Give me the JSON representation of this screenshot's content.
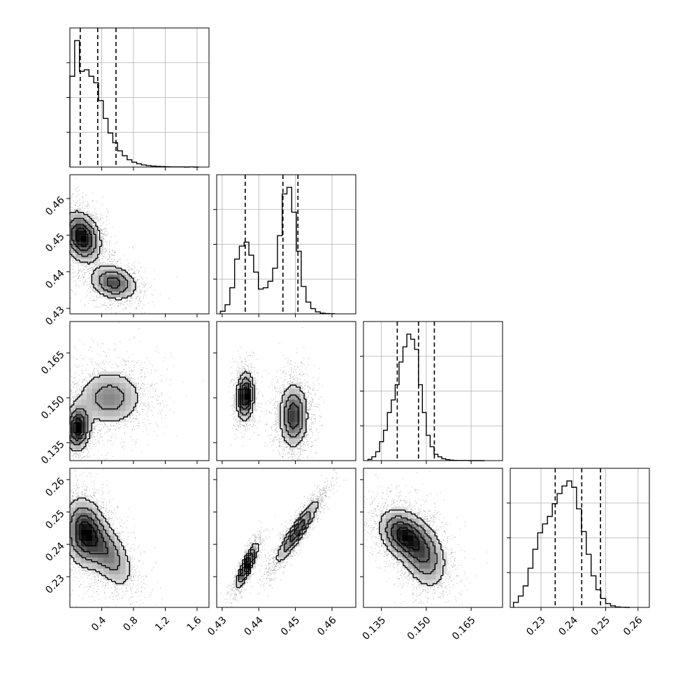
{
  "chart_data": {
    "type": "corner",
    "n_params": 4,
    "grid": true,
    "parameters": [
      {
        "index": 0,
        "range": [
          0.0,
          1.75
        ],
        "ticks": [
          0.4,
          0.8,
          1.2,
          1.6
        ],
        "tick_labels": [
          "0.4",
          "0.8",
          "1.2",
          "1.6"
        ],
        "quantiles": [
          0.13,
          0.35,
          0.58
        ]
      },
      {
        "index": 1,
        "range": [
          0.4285,
          0.4665
        ],
        "ticks": [
          0.43,
          0.44,
          0.45,
          0.46
        ],
        "tick_labels": [
          "0.43",
          "0.44",
          "0.45",
          "0.46"
        ],
        "quantiles": [
          0.4363,
          0.4466,
          0.4507
        ]
      },
      {
        "index": 2,
        "range": [
          0.129,
          0.1755
        ],
        "ticks": [
          0.135,
          0.15,
          0.165
        ],
        "tick_labels": [
          "0.135",
          "0.150",
          "0.165"
        ],
        "quantiles": [
          0.1403,
          0.1474,
          0.1527
        ]
      },
      {
        "index": 3,
        "range": [
          0.2205,
          0.2635
        ],
        "ticks": [
          0.23,
          0.24,
          0.25,
          0.26
        ],
        "tick_labels": [
          "0.23",
          "0.24",
          "0.25",
          "0.26"
        ],
        "quantiles": [
          0.2344,
          0.2426,
          0.2484
        ]
      }
    ],
    "histograms": [
      {
        "param": 0,
        "bins": [
          0.0,
          0.06,
          0.12,
          0.18,
          0.24,
          0.3,
          0.36,
          0.42,
          0.48,
          0.54,
          0.6,
          0.66,
          0.72,
          0.78,
          0.84,
          0.9,
          0.96,
          1.02,
          1.08,
          1.14,
          1.2,
          1.26,
          1.32,
          1.38,
          1.44,
          1.5,
          1.56,
          1.62
        ],
        "counts": [
          560,
          780,
          590,
          600,
          560,
          520,
          410,
          300,
          210,
          150,
          100,
          70,
          45,
          30,
          20,
          13,
          9,
          6,
          4,
          3,
          2,
          1,
          1,
          1,
          0,
          1,
          0
        ]
      },
      {
        "param": 1,
        "bins": [
          0.4295,
          0.4308,
          0.4321,
          0.4334,
          0.4347,
          0.436,
          0.4373,
          0.4386,
          0.4399,
          0.4412,
          0.4425,
          0.4438,
          0.4451,
          0.4464,
          0.4477,
          0.449,
          0.4503,
          0.4516,
          0.4529,
          0.4542,
          0.4555,
          0.4568,
          0.4581,
          0.4594,
          0.4607
        ],
        "counts": [
          20,
          70,
          200,
          420,
          520,
          550,
          450,
          320,
          190,
          200,
          250,
          350,
          600,
          920,
          970,
          780,
          480,
          210,
          90,
          40,
          15,
          5,
          2,
          1
        ]
      },
      {
        "param": 2,
        "bins": [
          0.1305,
          0.1318,
          0.1331,
          0.1344,
          0.1357,
          0.137,
          0.1383,
          0.1396,
          0.1409,
          0.1422,
          0.1435,
          0.1448,
          0.1461,
          0.1474,
          0.1487,
          0.15,
          0.1513,
          0.1526,
          0.1539,
          0.1552,
          0.1565,
          0.1578,
          0.1591,
          0.1604,
          0.1617,
          0.163,
          0.1643,
          0.1656,
          0.1669,
          0.1682,
          0.1695
        ],
        "counts": [
          10,
          30,
          70,
          150,
          240,
          380,
          480,
          600,
          780,
          900,
          1000,
          960,
          880,
          600,
          380,
          200,
          110,
          50,
          30,
          15,
          8,
          4,
          2,
          1,
          1,
          1,
          0,
          0,
          0,
          0
        ]
      },
      {
        "param": 3,
        "bins": [
          0.2215,
          0.223,
          0.2245,
          0.226,
          0.2275,
          0.229,
          0.2305,
          0.232,
          0.2335,
          0.235,
          0.2365,
          0.238,
          0.2395,
          0.241,
          0.2425,
          0.244,
          0.2455,
          0.247,
          0.2485,
          0.25,
          0.2515,
          0.253,
          0.2545,
          0.256,
          0.2575
        ],
        "counts": [
          40,
          90,
          170,
          310,
          460,
          590,
          660,
          720,
          820,
          900,
          960,
          1000,
          950,
          780,
          600,
          420,
          250,
          140,
          70,
          30,
          12,
          4,
          1,
          0
        ]
      }
    ],
    "joint": [
      {
        "x": 0,
        "y": 1,
        "clusters": [
          {
            "mx": 0.15,
            "my": 0.4495,
            "sx": 0.12,
            "sy": 0.0035,
            "rho": -0.25,
            "w": 0.62
          },
          {
            "mx": 0.55,
            "my": 0.437,
            "sx": 0.15,
            "sy": 0.0025,
            "rho": -0.2,
            "w": 0.38
          }
        ]
      },
      {
        "x": 0,
        "y": 2,
        "clusters": [
          {
            "mx": 0.1,
            "my": 0.14,
            "sx": 0.08,
            "sy": 0.004,
            "rho": 0.1,
            "w": 0.38
          },
          {
            "mx": 0.5,
            "my": 0.15,
            "sx": 0.22,
            "sy": 0.005,
            "rho": 0.0,
            "w": 0.62
          }
        ]
      },
      {
        "x": 0,
        "y": 3,
        "clusters": [
          {
            "mx": 0.18,
            "my": 0.2435,
            "sx": 0.13,
            "sy": 0.0055,
            "rho": -0.1,
            "w": 0.55
          },
          {
            "mx": 0.45,
            "my": 0.238,
            "sx": 0.18,
            "sy": 0.006,
            "rho": -0.6,
            "w": 0.45
          }
        ]
      },
      {
        "x": 1,
        "y": 2,
        "clusters": [
          {
            "mx": 0.4363,
            "my": 0.1505,
            "sx": 0.0012,
            "sy": 0.004,
            "rho": 0.1,
            "w": 0.38
          },
          {
            "mx": 0.4495,
            "my": 0.144,
            "sx": 0.002,
            "sy": 0.0055,
            "rho": 0.0,
            "w": 0.62
          }
        ]
      },
      {
        "x": 1,
        "y": 3,
        "clusters": [
          {
            "mx": 0.4368,
            "my": 0.2335,
            "sx": 0.0015,
            "sy": 0.0035,
            "rho": 0.85,
            "w": 0.38
          },
          {
            "mx": 0.4505,
            "my": 0.244,
            "sx": 0.003,
            "sy": 0.005,
            "rho": 0.92,
            "w": 0.62
          }
        ]
      },
      {
        "x": 2,
        "y": 3,
        "clusters": [
          {
            "mx": 0.142,
            "my": 0.243,
            "sx": 0.004,
            "sy": 0.004,
            "rho": -0.3,
            "w": 0.5
          },
          {
            "mx": 0.149,
            "my": 0.237,
            "sx": 0.004,
            "sy": 0.0055,
            "rho": -0.3,
            "w": 0.5
          }
        ]
      }
    ]
  }
}
